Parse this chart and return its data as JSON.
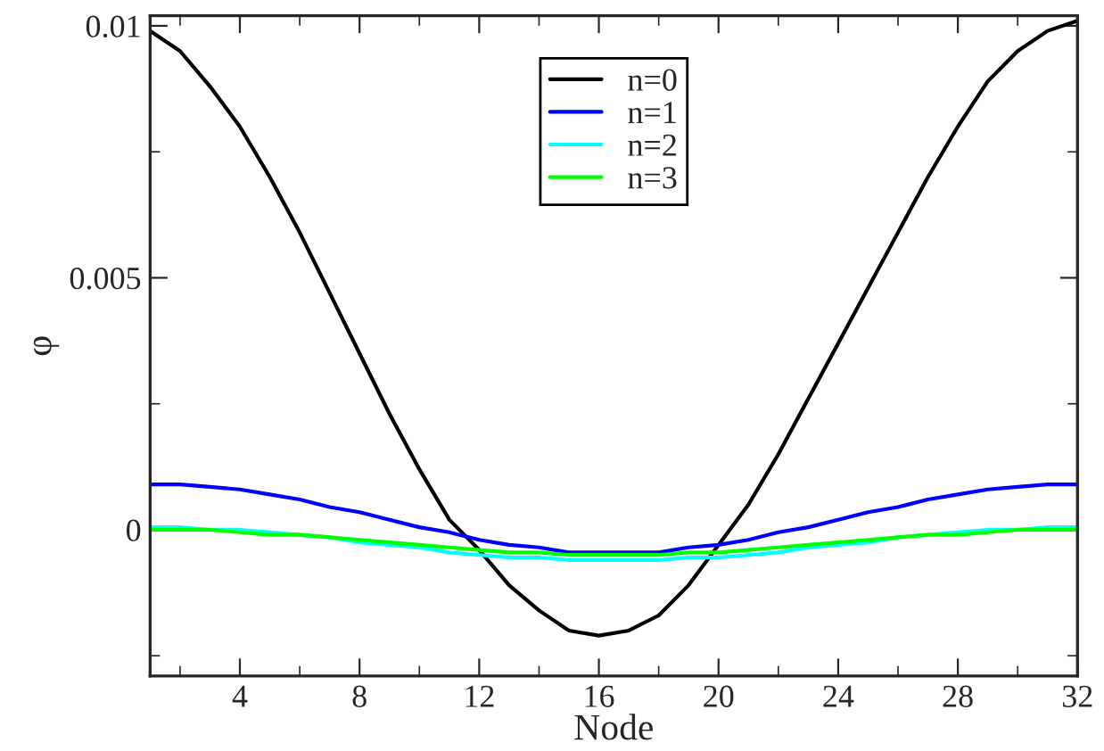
{
  "chart_data": {
    "type": "line",
    "xlabel": "Node",
    "ylabel": "φ",
    "x": [
      1,
      2,
      3,
      4,
      5,
      6,
      7,
      8,
      9,
      10,
      11,
      12,
      13,
      14,
      15,
      16,
      17,
      18,
      19,
      20,
      21,
      22,
      23,
      24,
      25,
      26,
      27,
      28,
      29,
      30,
      31,
      32
    ],
    "series": [
      {
        "name": "n=0",
        "color": "#000000",
        "values": [
          0.0099,
          0.0095,
          0.0088,
          0.008,
          0.007,
          0.0059,
          0.0047,
          0.0035,
          0.0023,
          0.0012,
          0.0002,
          -0.0004,
          -0.0011,
          -0.0016,
          -0.002,
          -0.0021,
          -0.002,
          -0.0017,
          -0.0011,
          -0.0003,
          0.0005,
          0.0015,
          0.0026,
          0.0037,
          0.0048,
          0.0059,
          0.007,
          0.008,
          0.0089,
          0.0095,
          0.0099,
          0.0101
        ]
      },
      {
        "name": "n=1",
        "color": "#0000ff",
        "values": [
          0.0009,
          0.0009,
          0.00085,
          0.0008,
          0.0007,
          0.0006,
          0.00045,
          0.00035,
          0.0002,
          5e-05,
          -5e-05,
          -0.0002,
          -0.0003,
          -0.00035,
          -0.00045,
          -0.00045,
          -0.00045,
          -0.00045,
          -0.00035,
          -0.0003,
          -0.0002,
          -5e-05,
          5e-05,
          0.0002,
          0.00035,
          0.00045,
          0.0006,
          0.0007,
          0.0008,
          0.00085,
          0.0009,
          0.0009
        ]
      },
      {
        "name": "n=2",
        "color": "#00ffff",
        "values": [
          5e-05,
          5e-05,
          0,
          0,
          -5e-05,
          -0.0001,
          -0.00015,
          -0.00025,
          -0.0003,
          -0.00035,
          -0.00045,
          -0.0005,
          -0.00055,
          -0.00055,
          -0.0006,
          -0.0006,
          -0.0006,
          -0.0006,
          -0.00055,
          -0.00055,
          -0.0005,
          -0.00045,
          -0.00035,
          -0.0003,
          -0.00025,
          -0.00015,
          -0.0001,
          -5e-05,
          0,
          0,
          5e-05,
          5e-05
        ]
      },
      {
        "name": "n=3",
        "color": "#00ff00",
        "values": [
          0,
          0,
          0,
          -5e-05,
          -0.0001,
          -0.0001,
          -0.00015,
          -0.0002,
          -0.00025,
          -0.0003,
          -0.00035,
          -0.0004,
          -0.00045,
          -0.00045,
          -0.0005,
          -0.0005,
          -0.0005,
          -0.0005,
          -0.00045,
          -0.00045,
          -0.0004,
          -0.00035,
          -0.0003,
          -0.00025,
          -0.0002,
          -0.00015,
          -0.0001,
          -0.0001,
          -5e-05,
          0,
          0,
          0
        ]
      }
    ],
    "xlim": [
      1,
      32
    ],
    "xticks": [
      4,
      8,
      12,
      16,
      20,
      24,
      28,
      32
    ],
    "ylim": [
      -0.0029,
      0.0102
    ],
    "yticks": [
      0,
      0.005,
      0.01
    ],
    "grid": false,
    "legend": "top",
    "marker": "none",
    "line_style": "solid"
  }
}
